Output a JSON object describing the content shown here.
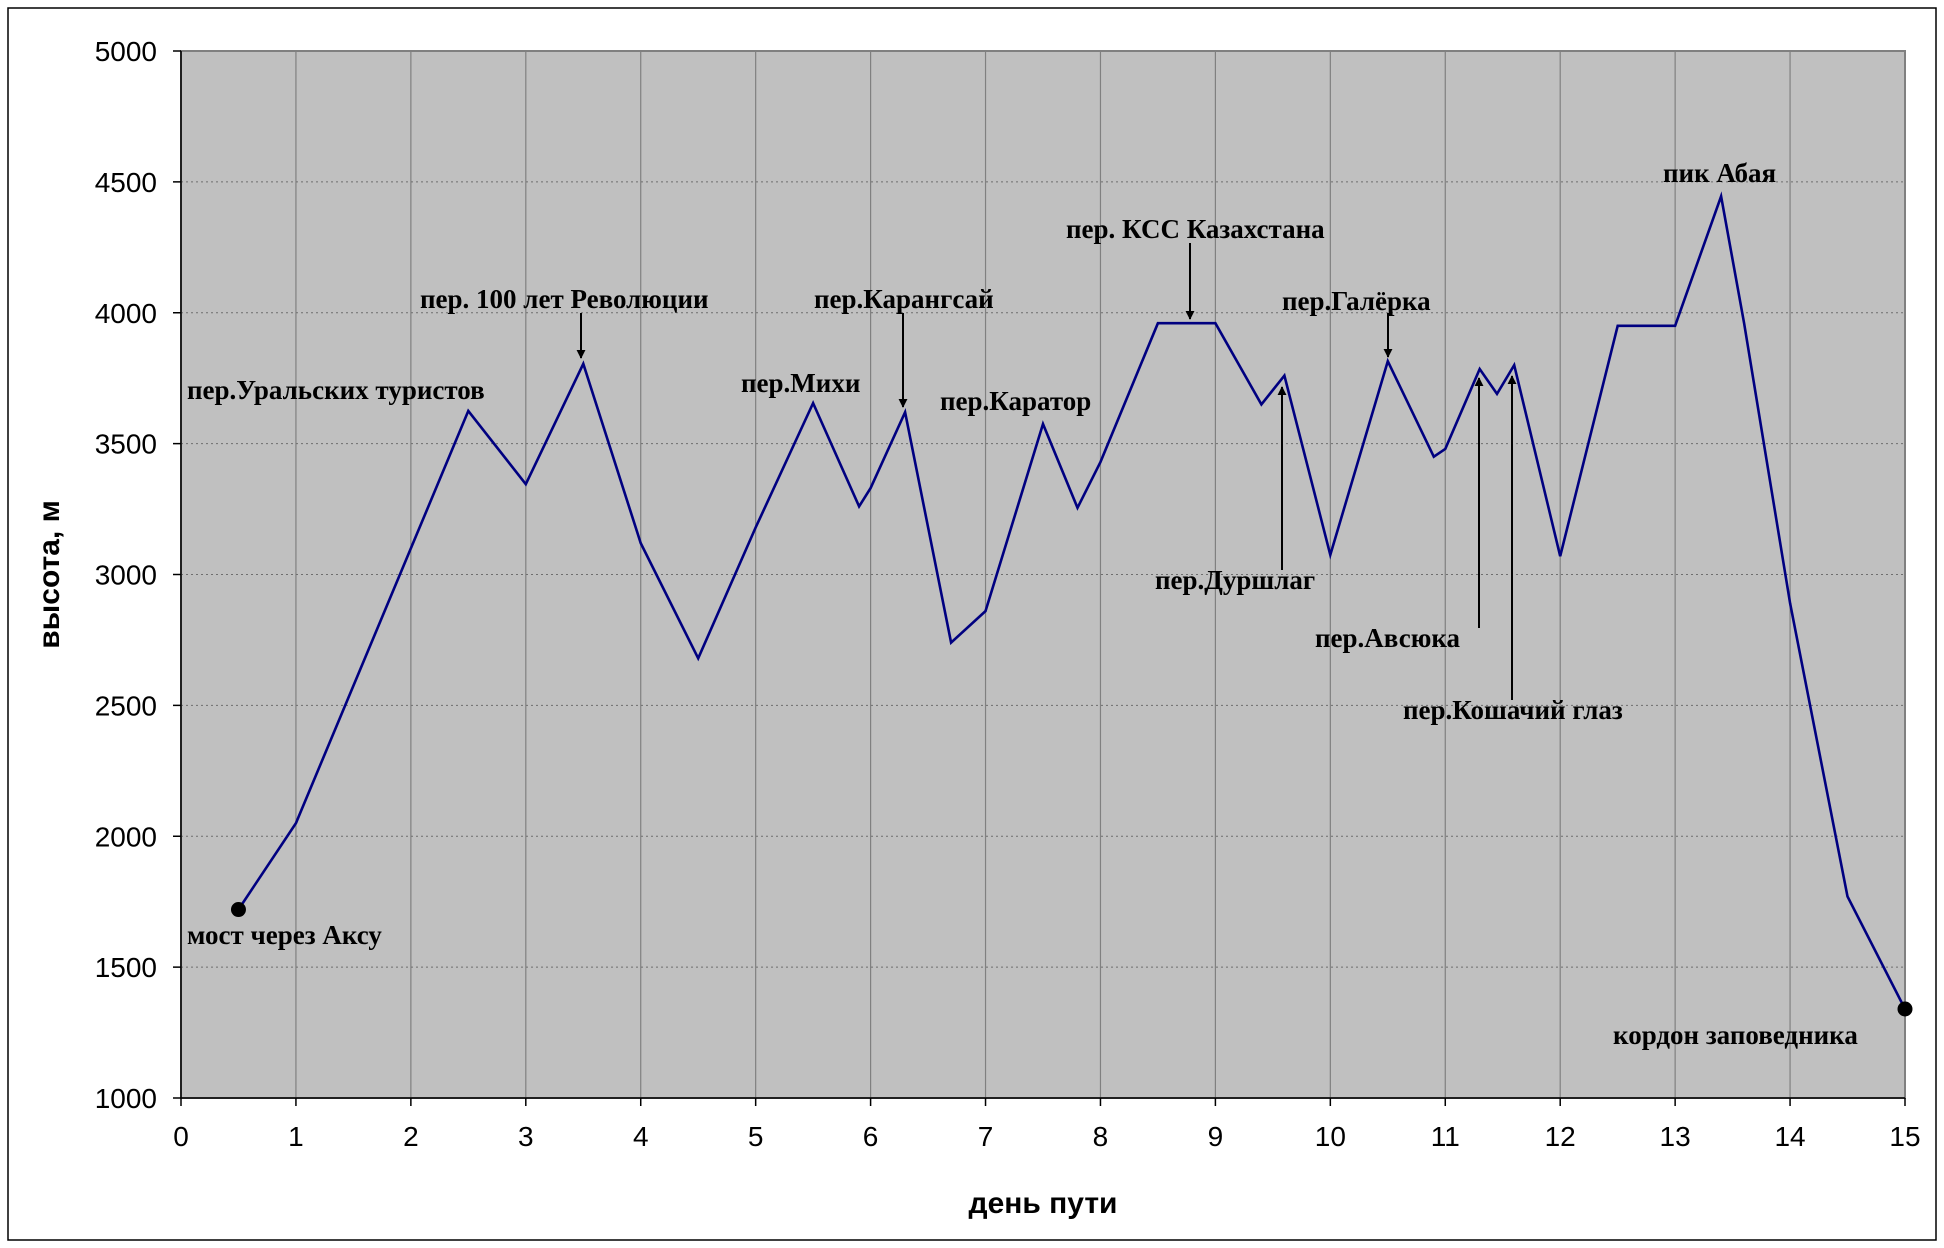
{
  "chart_data": {
    "type": "line",
    "xlabel": "день пути",
    "ylabel": "высота, м",
    "xlim": [
      0,
      15
    ],
    "ylim": [
      1000,
      5000
    ],
    "xticks": [
      0,
      1,
      2,
      3,
      4,
      5,
      6,
      7,
      8,
      9,
      10,
      11,
      12,
      13,
      14,
      15
    ],
    "yticks": [
      1000,
      1500,
      2000,
      2500,
      3000,
      3500,
      4000,
      4500,
      5000
    ],
    "grid": true,
    "colors": {
      "line": "#000080",
      "plot_bg": "#c0c0c0",
      "grid": "#808080"
    },
    "series": [
      {
        "x": [
          0.5,
          1,
          2,
          2.5,
          3,
          3.5,
          4,
          4.5,
          5,
          5.5,
          5.9,
          6,
          6.3,
          6.7,
          7,
          7.5,
          7.8,
          8,
          8.5,
          9,
          9.4,
          9.6,
          10,
          10.5,
          10.9,
          11,
          11.3,
          11.45,
          11.6,
          12,
          12.5,
          13,
          13.4,
          13.6,
          14,
          14.5,
          15
        ],
        "y": [
          1720,
          2050,
          3100,
          3625,
          3345,
          3805,
          3120,
          2680,
          3180,
          3655,
          3260,
          3330,
          3620,
          2740,
          2860,
          3575,
          3255,
          3430,
          3960,
          3960,
          3650,
          3760,
          3075,
          3815,
          3450,
          3480,
          3785,
          3690,
          3800,
          3070,
          3950,
          3950,
          4445,
          3960,
          2890,
          1770,
          1340
        ]
      }
    ],
    "endpoint_markers": [
      {
        "x": 0.5,
        "y": 1720
      },
      {
        "x": 15,
        "y": 1340
      }
    ],
    "annotations": [
      {
        "text": "мост через Аксу",
        "x": 0.5,
        "y": 1720,
        "arrow": false
      },
      {
        "text": "пер.Уральских туристов",
        "x": 2.5,
        "y": 3625,
        "arrow": false
      },
      {
        "text": "пер. 100 лет Революции",
        "x": 3.5,
        "y": 3805,
        "arrow": true
      },
      {
        "text": "пер.Михи",
        "x": 5.5,
        "y": 3655,
        "arrow": false
      },
      {
        "text": "пер.Карангсай",
        "x": 6.3,
        "y": 3620,
        "arrow": true
      },
      {
        "text": "пер.Каратор",
        "x": 7.5,
        "y": 3575,
        "arrow": false
      },
      {
        "text": "пер. КСС Казахстана",
        "x": 8.8,
        "y": 3960,
        "arrow": true
      },
      {
        "text": "пер.Дуршлаг",
        "x": 9.6,
        "y": 3760,
        "arrow": true
      },
      {
        "text": "пер.Галёрка",
        "x": 10.5,
        "y": 3815,
        "arrow": true
      },
      {
        "text": "пер.Авсюка",
        "x": 11.3,
        "y": 3785,
        "arrow": true
      },
      {
        "text": "пер.Кошачий глаз",
        "x": 11.6,
        "y": 3800,
        "arrow": true
      },
      {
        "text": "пик Абая",
        "x": 13.4,
        "y": 4445,
        "arrow": false
      },
      {
        "text": "кордон заповедника",
        "x": 15,
        "y": 1340,
        "arrow": false
      }
    ]
  }
}
